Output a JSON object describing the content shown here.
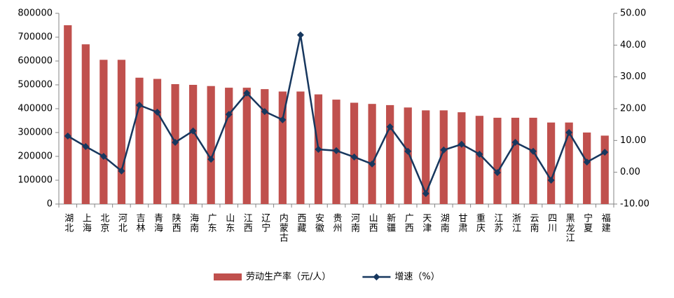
{
  "chart_data": {
    "type": "bar-line",
    "categories": [
      "湖北",
      "上海",
      "北京",
      "河北",
      "吉林",
      "青海",
      "陕西",
      "海南",
      "广东",
      "山东",
      "江西",
      "辽宁",
      "内蒙古",
      "西藏",
      "安徽",
      "贵州",
      "河南",
      "山西",
      "新疆",
      "广西",
      "天津",
      "湖南",
      "甘肃",
      "重庆",
      "江苏",
      "浙江",
      "云南",
      "四川",
      "黑龙江",
      "宁夏",
      "福建"
    ],
    "series": [
      {
        "name": "劳动生产率（元/人）",
        "type": "bar",
        "color": "#c0504d",
        "values": [
          750000,
          670000,
          605000,
          605000,
          530000,
          525000,
          503000,
          500000,
          495000,
          488000,
          488000,
          482000,
          472000,
          472000,
          460000,
          438000,
          425000,
          420000,
          415000,
          405000,
          393000,
          393000,
          385000,
          370000,
          362000,
          362000,
          362000,
          342000,
          342000,
          300000,
          287000
        ]
      },
      {
        "name": "增速（%）",
        "type": "line",
        "axis": "y2",
        "color": "#17375e",
        "values": [
          11.4,
          8.1,
          5.0,
          0.4,
          21.1,
          18.9,
          9.4,
          13.0,
          4.1,
          18.2,
          24.9,
          19.1,
          16.5,
          43.2,
          7.2,
          6.8,
          4.8,
          2.6,
          14.3,
          6.6,
          -6.7,
          7.0,
          8.8,
          5.7,
          -0.1,
          9.4,
          6.6,
          -2.5,
          12.5,
          3.2,
          6.3
        ]
      }
    ],
    "ylim": [
      0,
      800000
    ],
    "yticks": [
      0,
      100000,
      200000,
      300000,
      400000,
      500000,
      600000,
      700000,
      800000
    ],
    "y2lim": [
      -10,
      50
    ],
    "y2ticks": [
      {
        "value": -10,
        "label": "-10.00"
      },
      {
        "value": 0,
        "label": "0.00"
      },
      {
        "value": 10,
        "label": "10.00"
      },
      {
        "value": 20,
        "label": "20.00"
      },
      {
        "value": 30,
        "label": "30.00"
      },
      {
        "value": 40,
        "label": "40.00"
      },
      {
        "value": 50,
        "label": "50.00"
      }
    ],
    "grid": false,
    "legend": "bottom"
  }
}
